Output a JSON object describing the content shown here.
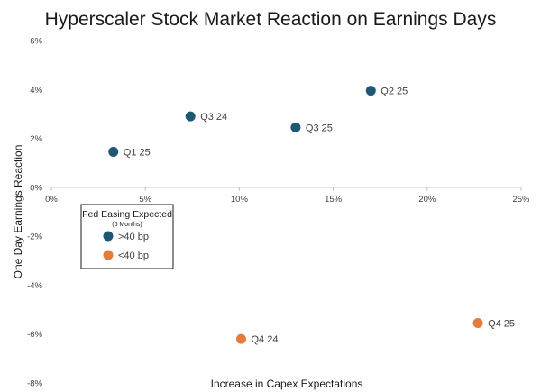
{
  "chart_data": {
    "type": "scatter",
    "title": "Hyperscaler Stock Market Reaction on Earnings Days",
    "xlabel": "Increase in Capex Expectations",
    "ylabel": "One Day Earnings Reaction",
    "xlim": [
      0,
      25
    ],
    "ylim": [
      -8,
      6
    ],
    "x_ticks": [
      0,
      5,
      10,
      15,
      20,
      25
    ],
    "y_ticks": [
      6,
      4,
      2,
      0,
      -2,
      -4,
      -6,
      -8
    ],
    "x_tick_labels": [
      "0%",
      "5%",
      "10%",
      "15%",
      "20%",
      "25%"
    ],
    "y_tick_labels": [
      "6%",
      "4%",
      "2%",
      "0%",
      "-2%",
      "-4%",
      "-6%",
      "-8%"
    ],
    "grid": false,
    "legend": {
      "title": "Fed Easing Expected",
      "subtitle": "(6 Months)",
      "placement": "left",
      "entries": [
        {
          "name": ">40 bp",
          "color": "#1f5872"
        },
        {
          "name": "<40 bp",
          "color": "#e57b3b"
        }
      ]
    },
    "series": [
      {
        "name": ">40 bp",
        "color": "#1f5872",
        "points": [
          {
            "label": "Q1 25",
            "x": 3.3,
            "y": 1.45
          },
          {
            "label": "Q3 24",
            "x": 7.4,
            "y": 2.9
          },
          {
            "label": "Q3 25",
            "x": 13.0,
            "y": 2.45
          },
          {
            "label": "Q2 25",
            "x": 17.0,
            "y": 3.95
          }
        ]
      },
      {
        "name": "<40 bp",
        "color": "#e57b3b",
        "points": [
          {
            "label": "Q4 24",
            "x": 10.1,
            "y": -6.2
          },
          {
            "label": "Q4 25",
            "x": 22.7,
            "y": -5.55
          }
        ]
      }
    ]
  }
}
